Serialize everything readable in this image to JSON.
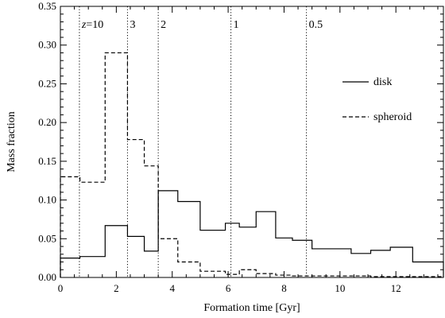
{
  "chart_data": {
    "type": "line",
    "xlabel": "Formation time [Gyr]",
    "ylabel": "Mass fraction",
    "xlim": [
      0,
      13.7
    ],
    "ylim": [
      0,
      0.35
    ],
    "xticks": [
      0,
      2,
      4,
      6,
      8,
      10,
      12
    ],
    "yticks": [
      0.0,
      0.05,
      0.1,
      0.15,
      0.2,
      0.25,
      0.3,
      0.35
    ],
    "grid": false,
    "legend_position": "right",
    "redshift_markers": [
      {
        "label": "z=10",
        "x": 0.68
      },
      {
        "label": "3",
        "x": 2.4
      },
      {
        "label": "2",
        "x": 3.5
      },
      {
        "label": "1",
        "x": 6.1
      },
      {
        "label": "0.5",
        "x": 8.8
      }
    ],
    "bin_edges": [
      0,
      0.7,
      1.6,
      2.4,
      3.0,
      3.5,
      4.2,
      5.0,
      5.9,
      6.4,
      7.0,
      7.7,
      8.3,
      9.0,
      9.6,
      10.4,
      11.1,
      11.8,
      12.6,
      13.7
    ],
    "series": [
      {
        "name": "disk",
        "style": "solid",
        "values": [
          0.025,
          0.027,
          0.067,
          0.053,
          0.034,
          0.112,
          0.098,
          0.061,
          0.07,
          0.065,
          0.085,
          0.051,
          0.048,
          0.037,
          0.037,
          0.031,
          0.035,
          0.039,
          0.02
        ]
      },
      {
        "name": "spheroid",
        "style": "dashed",
        "values": [
          0.13,
          0.123,
          0.29,
          0.178,
          0.144,
          0.05,
          0.02,
          0.008,
          0.004,
          0.01,
          0.005,
          0.003,
          0.002,
          0.002,
          0.002,
          0.002,
          0.001,
          0.001,
          0.001
        ]
      }
    ]
  }
}
